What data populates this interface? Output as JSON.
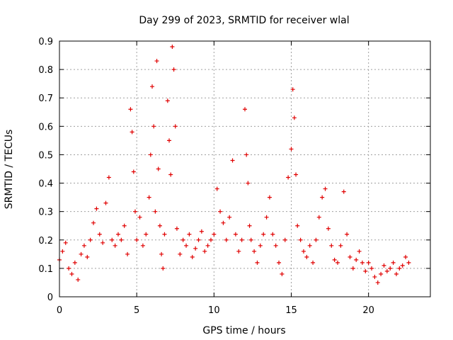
{
  "chart_data": {
    "type": "scatter",
    "title": "Day 299 of 2023, SRMTID for receiver wlal",
    "xlabel": "GPS time / hours",
    "ylabel": "SRMTID / TECUs",
    "xlim": [
      0,
      24
    ],
    "ylim": [
      0,
      0.9
    ],
    "xticks": [
      0,
      5,
      10,
      15,
      20
    ],
    "xtick_labels": [
      "0",
      "5",
      "10",
      "15",
      "20"
    ],
    "yticks": [
      0,
      0.1,
      0.2,
      0.3,
      0.4,
      0.5,
      0.6,
      0.7,
      0.8,
      0.9
    ],
    "ytick_labels": [
      "0",
      "0.1",
      "0.2",
      "0.3",
      "0.4",
      "0.5",
      "0.6",
      "0.7",
      "0.8",
      "0.9"
    ],
    "grid": true,
    "marker": "+",
    "color": "#e00000",
    "series": [
      {
        "name": "wlal",
        "x": [
          0.0,
          0.2,
          0.4,
          0.6,
          0.8,
          1.0,
          1.2,
          1.4,
          1.6,
          1.8,
          2.0,
          2.2,
          2.4,
          2.6,
          2.8,
          3.0,
          3.2,
          3.4,
          3.6,
          3.8,
          4.0,
          4.2,
          4.4,
          4.6,
          4.7,
          4.8,
          4.9,
          5.0,
          5.2,
          5.4,
          5.6,
          5.8,
          5.9,
          6.0,
          6.1,
          6.2,
          6.3,
          6.4,
          6.5,
          6.6,
          6.7,
          6.8,
          7.0,
          7.1,
          7.2,
          7.3,
          7.4,
          7.5,
          7.6,
          7.8,
          8.0,
          8.2,
          8.4,
          8.6,
          8.8,
          9.0,
          9.2,
          9.4,
          9.6,
          9.8,
          10.0,
          10.2,
          10.4,
          10.6,
          10.8,
          11.0,
          11.2,
          11.4,
          11.6,
          11.8,
          12.0,
          12.1,
          12.2,
          12.3,
          12.4,
          12.6,
          12.8,
          13.0,
          13.2,
          13.4,
          13.6,
          13.8,
          14.0,
          14.2,
          14.4,
          14.6,
          14.8,
          15.0,
          15.1,
          15.2,
          15.3,
          15.4,
          15.6,
          15.8,
          16.0,
          16.2,
          16.4,
          16.6,
          16.8,
          17.0,
          17.2,
          17.4,
          17.6,
          17.8,
          18.0,
          18.2,
          18.4,
          18.6,
          18.8,
          19.0,
          19.2,
          19.4,
          19.6,
          19.8,
          20.0,
          20.2,
          20.4,
          20.6,
          20.8,
          21.0,
          21.2,
          21.4,
          21.6,
          21.8,
          22.0,
          22.2,
          22.4,
          22.6
        ],
        "y": [
          0.13,
          0.16,
          0.19,
          0.1,
          0.08,
          0.12,
          0.06,
          0.15,
          0.18,
          0.14,
          0.2,
          0.26,
          0.31,
          0.22,
          0.19,
          0.33,
          0.42,
          0.2,
          0.18,
          0.22,
          0.2,
          0.25,
          0.15,
          0.66,
          0.58,
          0.44,
          0.3,
          0.2,
          0.28,
          0.18,
          0.22,
          0.35,
          0.5,
          0.74,
          0.6,
          0.3,
          0.83,
          0.45,
          0.25,
          0.15,
          0.1,
          0.22,
          0.69,
          0.55,
          0.43,
          0.88,
          0.8,
          0.6,
          0.24,
          0.15,
          0.2,
          0.18,
          0.22,
          0.14,
          0.17,
          0.2,
          0.23,
          0.16,
          0.18,
          0.2,
          0.22,
          0.38,
          0.3,
          0.26,
          0.2,
          0.28,
          0.48,
          0.22,
          0.16,
          0.2,
          0.66,
          0.5,
          0.4,
          0.25,
          0.2,
          0.16,
          0.12,
          0.18,
          0.22,
          0.28,
          0.35,
          0.22,
          0.18,
          0.12,
          0.08,
          0.2,
          0.42,
          0.52,
          0.73,
          0.63,
          0.43,
          0.25,
          0.2,
          0.16,
          0.14,
          0.18,
          0.12,
          0.2,
          0.28,
          0.35,
          0.38,
          0.24,
          0.18,
          0.13,
          0.12,
          0.18,
          0.37,
          0.22,
          0.14,
          0.1,
          0.13,
          0.16,
          0.12,
          0.09,
          0.12,
          0.1,
          0.07,
          0.05,
          0.08,
          0.11,
          0.09,
          0.1,
          0.12,
          0.08,
          0.1,
          0.11,
          0.14,
          0.12
        ]
      }
    ]
  }
}
